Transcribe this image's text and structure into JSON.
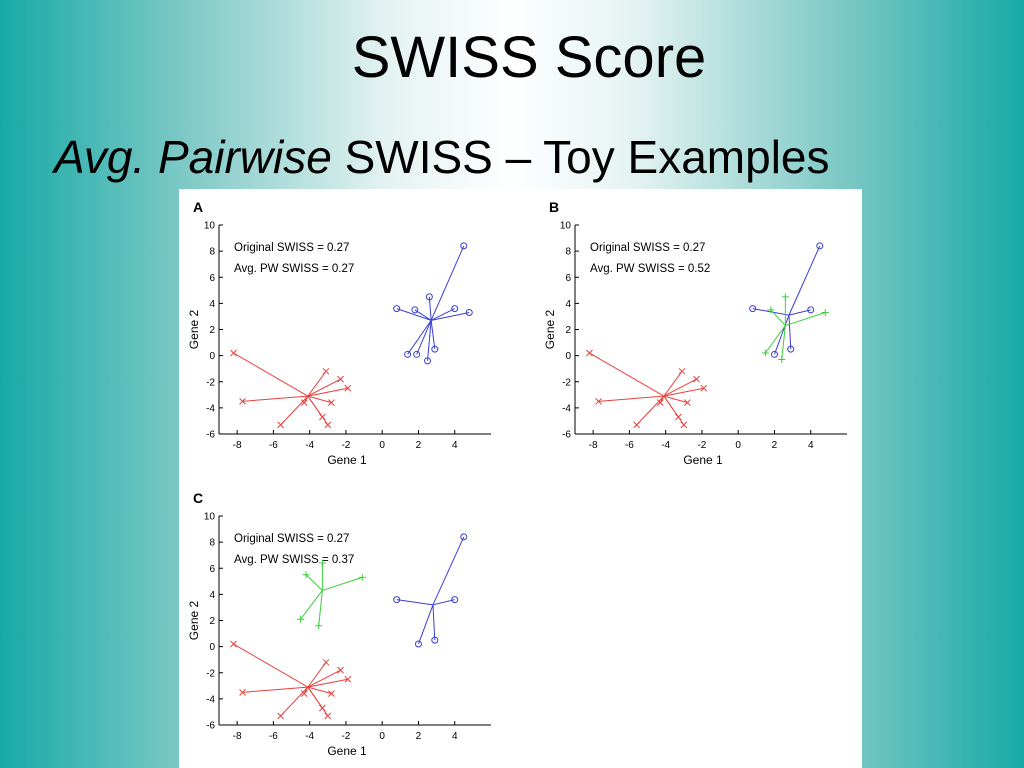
{
  "slide": {
    "title": "SWISS Score",
    "subtitle_italic": "Avg. Pairwise",
    "subtitle_rest": " SWISS – Toy Examples"
  },
  "chart_data": [
    {
      "type": "scatter",
      "panel_label": "A",
      "xlabel": "Gene 1",
      "ylabel": "Gene 2",
      "xlim": [
        -9,
        6
      ],
      "ylim": [
        -6,
        10
      ],
      "xticks": [
        -8,
        -6,
        -4,
        -2,
        0,
        2,
        4
      ],
      "yticks": [
        -6,
        -4,
        -2,
        0,
        2,
        4,
        6,
        8,
        10
      ],
      "annotations": [
        "Original SWISS = 0.27",
        "Avg. PW SWISS = 0.27"
      ],
      "grid": false,
      "series": [
        {
          "marker": "x",
          "color": "#e8413c",
          "centroid": [
            -4.1,
            -3.1
          ],
          "points": [
            [
              -8.2,
              0.2
            ],
            [
              -7.7,
              -3.5
            ],
            [
              -5.6,
              -5.3
            ],
            [
              -4.3,
              -3.6
            ],
            [
              -3.1,
              -1.2
            ],
            [
              -2.3,
              -1.8
            ],
            [
              -1.9,
              -2.5
            ],
            [
              -2.8,
              -3.6
            ],
            [
              -3.3,
              -4.7
            ],
            [
              -3.0,
              -5.3
            ]
          ]
        },
        {
          "marker": "o",
          "color": "#3a3fd0",
          "centroid": [
            2.7,
            2.7
          ],
          "points": [
            [
              0.8,
              3.6
            ],
            [
              1.8,
              3.5
            ],
            [
              2.6,
              4.5
            ],
            [
              4.0,
              3.6
            ],
            [
              4.8,
              3.3
            ],
            [
              4.5,
              8.4
            ],
            [
              1.4,
              0.1
            ],
            [
              1.9,
              0.1
            ],
            [
              2.5,
              -0.4
            ],
            [
              2.9,
              0.5
            ]
          ]
        }
      ]
    },
    {
      "type": "scatter",
      "panel_label": "B",
      "xlabel": "Gene 1",
      "ylabel": "Gene 2",
      "xlim": [
        -9,
        6
      ],
      "ylim": [
        -6,
        10
      ],
      "xticks": [
        -8,
        -6,
        -4,
        -2,
        0,
        2,
        4
      ],
      "yticks": [
        -6,
        -4,
        -2,
        0,
        2,
        4,
        6,
        8,
        10
      ],
      "annotations": [
        "Original SWISS = 0.27",
        "Avg. PW SWISS = 0.52"
      ],
      "grid": false,
      "series": [
        {
          "marker": "x",
          "color": "#e8413c",
          "centroid": [
            -4.1,
            -3.1
          ],
          "points": [
            [
              -8.2,
              0.2
            ],
            [
              -7.7,
              -3.5
            ],
            [
              -5.6,
              -5.3
            ],
            [
              -4.3,
              -3.6
            ],
            [
              -3.1,
              -1.2
            ],
            [
              -2.3,
              -1.8
            ],
            [
              -1.9,
              -2.5
            ],
            [
              -2.8,
              -3.6
            ],
            [
              -3.3,
              -4.7
            ],
            [
              -3.0,
              -5.3
            ]
          ]
        },
        {
          "marker": "o",
          "color": "#3a3fd0",
          "centroid": [
            2.8,
            3.1
          ],
          "points": [
            [
              0.8,
              3.6
            ],
            [
              4.0,
              3.5
            ],
            [
              4.5,
              8.4
            ],
            [
              2.0,
              0.1
            ],
            [
              2.9,
              0.5
            ]
          ]
        },
        {
          "marker": "+",
          "color": "#3ccf3c",
          "centroid": [
            2.6,
            2.3
          ],
          "points": [
            [
              2.6,
              4.5
            ],
            [
              1.8,
              3.5
            ],
            [
              4.8,
              3.3
            ],
            [
              1.5,
              0.2
            ],
            [
              2.4,
              -0.3
            ]
          ]
        }
      ]
    },
    {
      "type": "scatter",
      "panel_label": "C",
      "xlabel": "Gene 1",
      "ylabel": "Gene 2",
      "xlim": [
        -9,
        6
      ],
      "ylim": [
        -6,
        10
      ],
      "xticks": [
        -8,
        -6,
        -4,
        -2,
        0,
        2,
        4
      ],
      "yticks": [
        -6,
        -4,
        -2,
        0,
        2,
        4,
        6,
        8,
        10
      ],
      "annotations": [
        "Original SWISS = 0.27",
        "Avg. PW SWISS = 0.37"
      ],
      "grid": false,
      "series": [
        {
          "marker": "x",
          "color": "#e8413c",
          "centroid": [
            -4.1,
            -3.1
          ],
          "points": [
            [
              -8.2,
              0.2
            ],
            [
              -7.7,
              -3.5
            ],
            [
              -5.6,
              -5.3
            ],
            [
              -4.3,
              -3.6
            ],
            [
              -3.1,
              -1.2
            ],
            [
              -2.3,
              -1.8
            ],
            [
              -1.9,
              -2.5
            ],
            [
              -2.8,
              -3.6
            ],
            [
              -3.3,
              -4.7
            ],
            [
              -3.0,
              -5.3
            ]
          ]
        },
        {
          "marker": "+",
          "color": "#3ccf3c",
          "centroid": [
            -3.3,
            4.3
          ],
          "points": [
            [
              -4.2,
              5.5
            ],
            [
              -3.3,
              6.4
            ],
            [
              -1.1,
              5.3
            ],
            [
              -4.5,
              2.1
            ],
            [
              -3.5,
              1.6
            ]
          ]
        },
        {
          "marker": "o",
          "color": "#3a3fd0",
          "centroid": [
            2.8,
            3.2
          ],
          "points": [
            [
              0.8,
              3.6
            ],
            [
              4.0,
              3.6
            ],
            [
              4.5,
              8.4
            ],
            [
              2.0,
              0.2
            ],
            [
              2.9,
              0.5
            ]
          ]
        }
      ]
    }
  ]
}
